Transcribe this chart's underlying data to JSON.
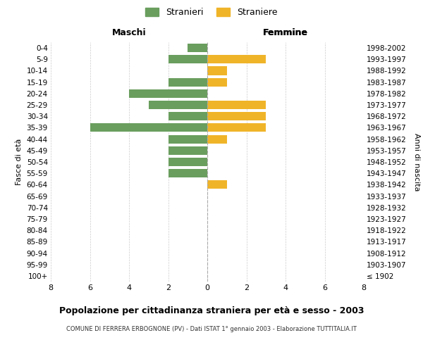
{
  "age_groups": [
    "100+",
    "95-99",
    "90-94",
    "85-89",
    "80-84",
    "75-79",
    "70-74",
    "65-69",
    "60-64",
    "55-59",
    "50-54",
    "45-49",
    "40-44",
    "35-39",
    "30-34",
    "25-29",
    "20-24",
    "15-19",
    "10-14",
    "5-9",
    "0-4"
  ],
  "birth_years": [
    "≤ 1902",
    "1903-1907",
    "1908-1912",
    "1913-1917",
    "1918-1922",
    "1923-1927",
    "1928-1932",
    "1933-1937",
    "1938-1942",
    "1943-1947",
    "1948-1952",
    "1953-1957",
    "1958-1962",
    "1963-1967",
    "1968-1972",
    "1973-1977",
    "1978-1982",
    "1983-1987",
    "1988-1992",
    "1993-1997",
    "1998-2002"
  ],
  "males": [
    0,
    0,
    0,
    0,
    0,
    0,
    0,
    0,
    0,
    2,
    2,
    2,
    2,
    6,
    2,
    3,
    4,
    2,
    0,
    2,
    1
  ],
  "females": [
    0,
    0,
    0,
    0,
    0,
    0,
    0,
    0,
    1,
    0,
    0,
    0,
    1,
    3,
    3,
    3,
    0,
    1,
    1,
    3,
    0
  ],
  "male_color": "#6a9e5e",
  "female_color": "#f0b429",
  "title": "Popolazione per cittadinanza straniera per età e sesso - 2003",
  "subtitle": "COMUNE DI FERRERA ERBOGNONE (PV) - Dati ISTAT 1° gennaio 2003 - Elaborazione TUTTITALIA.IT",
  "xlabel_left": "Maschi",
  "xlabel_right": "Femmine",
  "ylabel_left": "Fasce di età",
  "ylabel_right": "Anni di nascita",
  "legend_male": "Stranieri",
  "legend_female": "Straniere",
  "xlim": 8,
  "background_color": "#ffffff",
  "grid_color": "#cccccc"
}
